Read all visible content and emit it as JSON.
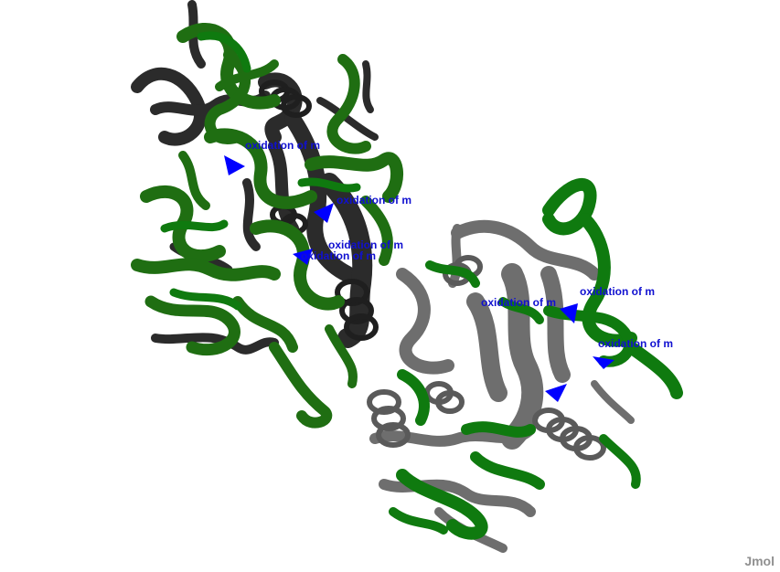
{
  "viewer": {
    "background": "#ffffff",
    "colors": {
      "strand_a": "#1f6e12",
      "strand_b": "#0f7a0f",
      "chain_dark": "#2b2b2b",
      "chain_gray": "#6e6e6e",
      "site": "#0000ff",
      "label": "#1010d0"
    },
    "labels": [
      "oxidation of m",
      "oxidation of m",
      "oxidation of m",
      "oxidation of m",
      "oxidation of m",
      "oxidation of m",
      "oxidation of m"
    ],
    "watermark": "Jmol"
  }
}
